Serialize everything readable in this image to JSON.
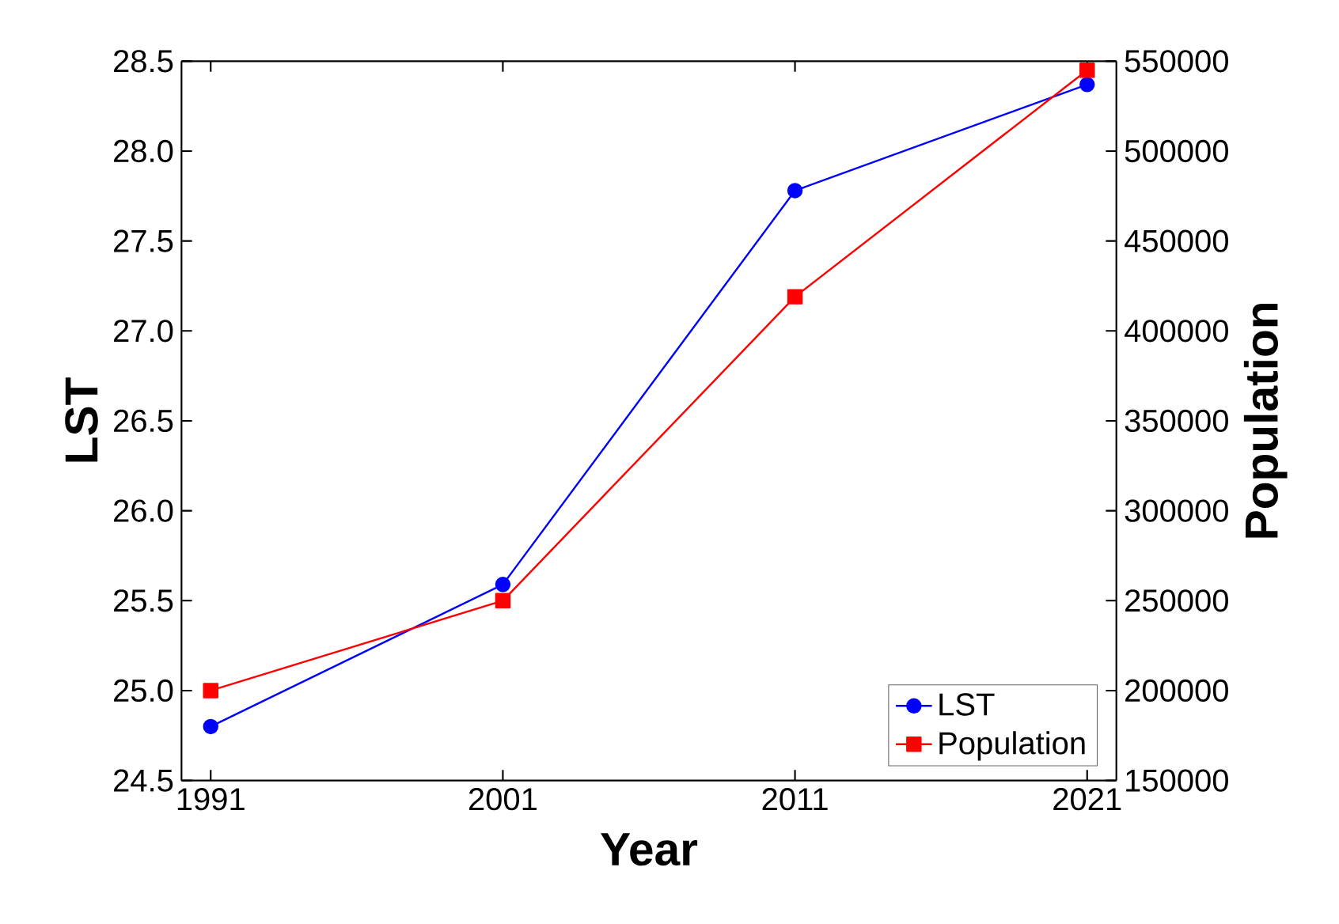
{
  "chart_data": {
    "type": "line",
    "xlabel": "Year",
    "ylabel": "LST",
    "y2label": "Population",
    "x": [
      1991,
      2001,
      2011,
      2021
    ],
    "series": [
      {
        "name": "LST",
        "color": "#0000ff",
        "marker": "circle",
        "values": [
          24.8,
          25.59,
          27.78,
          28.37
        ]
      },
      {
        "name": "Population",
        "color": "#ff0000",
        "marker": "square",
        "axis": "y2",
        "values": [
          200000,
          250000,
          419000,
          545000
        ]
      }
    ],
    "xlim": [
      1990,
      2022
    ],
    "xticks": [
      1991,
      2001,
      2011,
      2021
    ],
    "ylim": [
      24.5,
      28.5
    ],
    "yticks": [
      {
        "value": 24.5,
        "label": "24.5"
      },
      {
        "value": 25,
        "label": "25.0"
      },
      {
        "value": 25.5,
        "label": "25.5"
      },
      {
        "value": 26,
        "label": "26.0"
      },
      {
        "value": 26.5,
        "label": "26.5"
      },
      {
        "value": 27,
        "label": "27.0"
      },
      {
        "value": 27.5,
        "label": "27.5"
      },
      {
        "value": 28,
        "label": "28.0"
      },
      {
        "value": 28.5,
        "label": "28.5"
      }
    ],
    "y2lim": [
      150000,
      550000
    ],
    "y2ticks": [
      150000,
      200000,
      250000,
      300000,
      350000,
      400000,
      450000,
      500000,
      550000
    ],
    "legend": "bottom right",
    "grid": false,
    "line_style": "solid"
  }
}
